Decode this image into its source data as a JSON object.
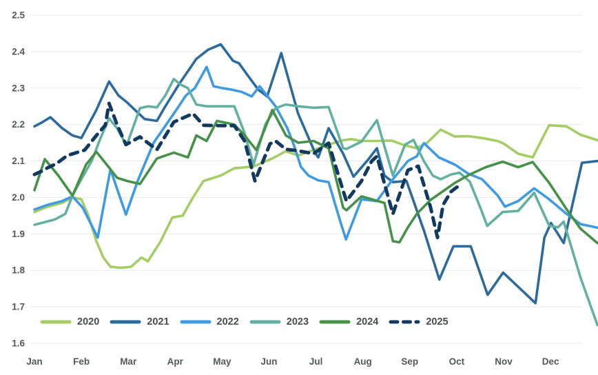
{
  "chart_data": {
    "type": "line",
    "title": "",
    "xlabel": "",
    "ylabel": "",
    "x_labels": [
      "Jan",
      "Feb",
      "Mar",
      "Apr",
      "May",
      "Jun",
      "Jul",
      "Aug",
      "Sep",
      "Oct",
      "Nov",
      "Dec"
    ],
    "y_axis": {
      "min": 1.6,
      "max": 2.5,
      "step": 0.1,
      "tick_labels": [
        "2.5",
        "2.4",
        "2.3",
        "2.2",
        "2.1",
        "2.0",
        "1.9",
        "1.8",
        "1.7",
        "1.6"
      ]
    },
    "grid": true,
    "grid_color": "#e9e9e9",
    "axis_text_color": "#54565a",
    "legend_position": "bottom",
    "series": [
      {
        "name": "2020",
        "color": "#a4cd64",
        "dashed": false,
        "points": [
          [
            0,
            1.96
          ],
          [
            0.29,
            1.975
          ],
          [
            0.59,
            1.985
          ],
          [
            0.81,
            2.0
          ],
          [
            1.0,
            1.995
          ],
          [
            1.15,
            1.95
          ],
          [
            1.32,
            1.88
          ],
          [
            1.47,
            1.835
          ],
          [
            1.62,
            1.81
          ],
          [
            1.84,
            1.807
          ],
          [
            2.06,
            1.81
          ],
          [
            2.28,
            1.835
          ],
          [
            2.42,
            1.825
          ],
          [
            2.69,
            1.88
          ],
          [
            2.94,
            1.945
          ],
          [
            3.16,
            1.95
          ],
          [
            3.38,
            2.0
          ],
          [
            3.6,
            2.045
          ],
          [
            3.97,
            2.06
          ],
          [
            4.26,
            2.08
          ],
          [
            4.67,
            2.085
          ],
          [
            5.07,
            2.107
          ],
          [
            5.36,
            2.127
          ],
          [
            5.62,
            2.115
          ],
          [
            5.95,
            2.13
          ],
          [
            6.27,
            2.145
          ],
          [
            6.58,
            2.157
          ],
          [
            6.75,
            2.16
          ],
          [
            6.97,
            2.155
          ],
          [
            7.3,
            2.155
          ],
          [
            7.61,
            2.156
          ],
          [
            7.89,
            2.143
          ],
          [
            8.15,
            2.135
          ],
          [
            8.37,
            2.15
          ],
          [
            8.66,
            2.186
          ],
          [
            8.96,
            2.167
          ],
          [
            9.25,
            2.168
          ],
          [
            9.54,
            2.163
          ],
          [
            9.87,
            2.155
          ],
          [
            10.0,
            2.148
          ],
          [
            10.31,
            2.12
          ],
          [
            10.62,
            2.11
          ],
          [
            10.97,
            2.198
          ],
          [
            11.34,
            2.195
          ],
          [
            11.64,
            2.172
          ],
          [
            12,
            2.157
          ]
        ]
      },
      {
        "name": "2021",
        "color": "#2b6a9d",
        "dashed": false,
        "points": [
          [
            0,
            2.195
          ],
          [
            0.15,
            2.205
          ],
          [
            0.34,
            2.22
          ],
          [
            0.59,
            2.19
          ],
          [
            0.81,
            2.17
          ],
          [
            1.0,
            2.163
          ],
          [
            1.32,
            2.24
          ],
          [
            1.59,
            2.318
          ],
          [
            1.79,
            2.28
          ],
          [
            1.98,
            2.26
          ],
          [
            2.2,
            2.233
          ],
          [
            2.35,
            2.215
          ],
          [
            2.61,
            2.21
          ],
          [
            2.79,
            2.25
          ],
          [
            3.08,
            2.31
          ],
          [
            3.45,
            2.38
          ],
          [
            3.7,
            2.405
          ],
          [
            3.97,
            2.42
          ],
          [
            4.23,
            2.375
          ],
          [
            4.36,
            2.368
          ],
          [
            4.55,
            2.334
          ],
          [
            4.77,
            2.296
          ],
          [
            4.96,
            2.277
          ],
          [
            5.26,
            2.396
          ],
          [
            5.62,
            2.23
          ],
          [
            5.98,
            2.123
          ],
          [
            6.05,
            2.11
          ],
          [
            6.27,
            2.19
          ],
          [
            6.58,
            2.12
          ],
          [
            6.8,
            2.057
          ],
          [
            7.12,
            2.105
          ],
          [
            7.3,
            2.135
          ],
          [
            7.46,
            2.06
          ],
          [
            7.64,
            2.042
          ],
          [
            7.93,
            2.045
          ],
          [
            8.3,
            1.91
          ],
          [
            8.63,
            1.775
          ],
          [
            8.93,
            1.866
          ],
          [
            9.3,
            1.866
          ],
          [
            9.66,
            1.733
          ],
          [
            9.99,
            1.794
          ],
          [
            10.68,
            1.71
          ],
          [
            10.87,
            1.89
          ],
          [
            11.01,
            1.93
          ],
          [
            11.28,
            1.875
          ],
          [
            11.67,
            2.095
          ],
          [
            12,
            2.1
          ]
        ]
      },
      {
        "name": "2022",
        "color": "#3e9ae3",
        "dashed": false,
        "points": [
          [
            0,
            1.967
          ],
          [
            0.29,
            1.98
          ],
          [
            0.59,
            1.99
          ],
          [
            0.81,
            2.003
          ],
          [
            1.03,
            1.972
          ],
          [
            1.35,
            1.89
          ],
          [
            1.62,
            2.077
          ],
          [
            1.95,
            1.953
          ],
          [
            2.2,
            2.045
          ],
          [
            2.54,
            2.15
          ],
          [
            2.97,
            2.23
          ],
          [
            3.23,
            2.28
          ],
          [
            3.42,
            2.3
          ],
          [
            3.67,
            2.358
          ],
          [
            3.82,
            2.305
          ],
          [
            4.0,
            2.3
          ],
          [
            4.19,
            2.296
          ],
          [
            4.41,
            2.29
          ],
          [
            4.63,
            2.277
          ],
          [
            4.8,
            2.305
          ],
          [
            5.14,
            2.25
          ],
          [
            5.39,
            2.19
          ],
          [
            5.54,
            2.14
          ],
          [
            5.68,
            2.084
          ],
          [
            5.84,
            2.06
          ],
          [
            6.05,
            2.047
          ],
          [
            6.27,
            2.042
          ],
          [
            6.51,
            1.938
          ],
          [
            6.64,
            1.885
          ],
          [
            6.97,
            1.995
          ],
          [
            7.3,
            1.99
          ],
          [
            7.61,
            2.045
          ],
          [
            7.96,
            2.1
          ],
          [
            8.15,
            2.113
          ],
          [
            8.3,
            2.149
          ],
          [
            8.62,
            2.11
          ],
          [
            8.96,
            2.09
          ],
          [
            9.25,
            2.065
          ],
          [
            9.54,
            2.05
          ],
          [
            9.87,
            2.006
          ],
          [
            10.03,
            1.975
          ],
          [
            10.31,
            1.99
          ],
          [
            10.65,
            2.025
          ],
          [
            10.97,
            1.995
          ],
          [
            11.34,
            1.955
          ],
          [
            11.64,
            1.927
          ],
          [
            12,
            1.917
          ]
        ]
      },
      {
        "name": "2023",
        "color": "#63b0a0",
        "dashed": false,
        "points": [
          [
            0,
            1.925
          ],
          [
            0.15,
            1.93
          ],
          [
            0.44,
            1.94
          ],
          [
            0.66,
            1.955
          ],
          [
            0.81,
            2.005
          ],
          [
            1.03,
            2.057
          ],
          [
            1.22,
            2.1
          ],
          [
            1.4,
            2.16
          ],
          [
            1.59,
            2.217
          ],
          [
            1.76,
            2.19
          ],
          [
            1.91,
            2.155
          ],
          [
            1.98,
            2.148
          ],
          [
            2.25,
            2.245
          ],
          [
            2.42,
            2.25
          ],
          [
            2.61,
            2.247
          ],
          [
            2.79,
            2.28
          ],
          [
            2.97,
            2.325
          ],
          [
            3.11,
            2.31
          ],
          [
            3.27,
            2.3
          ],
          [
            3.45,
            2.255
          ],
          [
            3.67,
            2.25
          ],
          [
            4.0,
            2.25
          ],
          [
            4.26,
            2.25
          ],
          [
            4.48,
            2.176
          ],
          [
            4.67,
            2.09
          ],
          [
            4.92,
            2.2
          ],
          [
            5.14,
            2.245
          ],
          [
            5.36,
            2.255
          ],
          [
            5.62,
            2.25
          ],
          [
            5.95,
            2.246
          ],
          [
            6.27,
            2.248
          ],
          [
            6.58,
            2.135
          ],
          [
            6.65,
            2.133
          ],
          [
            6.97,
            2.153
          ],
          [
            7.3,
            2.212
          ],
          [
            7.64,
            2.06
          ],
          [
            7.9,
            2.145
          ],
          [
            8.08,
            2.158
          ],
          [
            8.3,
            2.1
          ],
          [
            8.49,
            2.06
          ],
          [
            8.66,
            2.05
          ],
          [
            8.88,
            2.063
          ],
          [
            9.06,
            2.068
          ],
          [
            9.28,
            2.043
          ],
          [
            9.51,
            1.97
          ],
          [
            9.65,
            1.922
          ],
          [
            9.98,
            1.96
          ],
          [
            10.31,
            1.963
          ],
          [
            10.65,
            2.013
          ],
          [
            10.97,
            1.923
          ],
          [
            11.16,
            1.918
          ],
          [
            11.28,
            1.934
          ],
          [
            11.64,
            1.78
          ],
          [
            12,
            1.65
          ]
        ]
      },
      {
        "name": "2024",
        "color": "#469148",
        "dashed": false,
        "points": [
          [
            0,
            2.02
          ],
          [
            0.22,
            2.105
          ],
          [
            0.51,
            2.06
          ],
          [
            0.81,
            2.005
          ],
          [
            1.1,
            2.09
          ],
          [
            1.32,
            2.125
          ],
          [
            1.54,
            2.09
          ],
          [
            1.76,
            2.054
          ],
          [
            1.98,
            2.045
          ],
          [
            2.25,
            2.037
          ],
          [
            2.61,
            2.107
          ],
          [
            2.97,
            2.123
          ],
          [
            3.27,
            2.11
          ],
          [
            3.45,
            2.17
          ],
          [
            3.67,
            2.155
          ],
          [
            3.89,
            2.21
          ],
          [
            4.26,
            2.2
          ],
          [
            4.48,
            2.17
          ],
          [
            4.73,
            2.13
          ],
          [
            5.07,
            2.24
          ],
          [
            5.36,
            2.17
          ],
          [
            5.62,
            2.15
          ],
          [
            5.95,
            2.155
          ],
          [
            6.27,
            2.135
          ],
          [
            6.58,
            1.972
          ],
          [
            6.65,
            1.965
          ],
          [
            6.97,
            2.003
          ],
          [
            7.19,
            1.995
          ],
          [
            7.46,
            1.985
          ],
          [
            7.64,
            1.88
          ],
          [
            7.78,
            1.877
          ],
          [
            7.96,
            1.918
          ],
          [
            8.15,
            1.955
          ],
          [
            8.44,
            1.993
          ],
          [
            8.74,
            2.02
          ],
          [
            8.96,
            2.04
          ],
          [
            9.28,
            2.063
          ],
          [
            9.62,
            2.083
          ],
          [
            9.98,
            2.098
          ],
          [
            10.31,
            2.083
          ],
          [
            10.62,
            2.097
          ],
          [
            10.97,
            2.04
          ],
          [
            11.34,
            1.968
          ],
          [
            11.64,
            1.914
          ],
          [
            12,
            1.875
          ]
        ]
      },
      {
        "name": "2025",
        "color": "#123a60",
        "dashed": true,
        "points": [
          [
            0,
            2.063
          ],
          [
            0.15,
            2.072
          ],
          [
            0.29,
            2.082
          ],
          [
            0.47,
            2.093
          ],
          [
            0.7,
            2.115
          ],
          [
            1.07,
            2.13
          ],
          [
            1.32,
            2.17
          ],
          [
            1.51,
            2.198
          ],
          [
            1.59,
            2.258
          ],
          [
            1.76,
            2.2
          ],
          [
            1.95,
            2.145
          ],
          [
            2.25,
            2.166
          ],
          [
            2.61,
            2.131
          ],
          [
            2.97,
            2.207
          ],
          [
            3.27,
            2.224
          ],
          [
            3.38,
            2.23
          ],
          [
            3.6,
            2.198
          ],
          [
            4.0,
            2.197
          ],
          [
            4.26,
            2.197
          ],
          [
            4.48,
            2.155
          ],
          [
            4.7,
            2.045
          ],
          [
            5.02,
            2.147
          ],
          [
            5.14,
            2.155
          ],
          [
            5.36,
            2.132
          ],
          [
            5.62,
            2.128
          ],
          [
            5.95,
            2.12
          ],
          [
            6.27,
            2.149
          ],
          [
            6.58,
            2.018
          ],
          [
            6.65,
            1.99
          ],
          [
            6.97,
            2.045
          ],
          [
            7.19,
            2.1
          ],
          [
            7.3,
            2.113
          ],
          [
            7.46,
            2.038
          ],
          [
            7.64,
            1.955
          ],
          [
            7.96,
            2.075
          ],
          [
            8.18,
            2.086
          ],
          [
            8.44,
            1.974
          ],
          [
            8.59,
            1.89
          ],
          [
            8.71,
            1.98
          ],
          [
            8.88,
            2.016
          ],
          [
            9.0,
            2.028
          ],
          [
            9.06,
            2.03
          ]
        ]
      }
    ]
  }
}
